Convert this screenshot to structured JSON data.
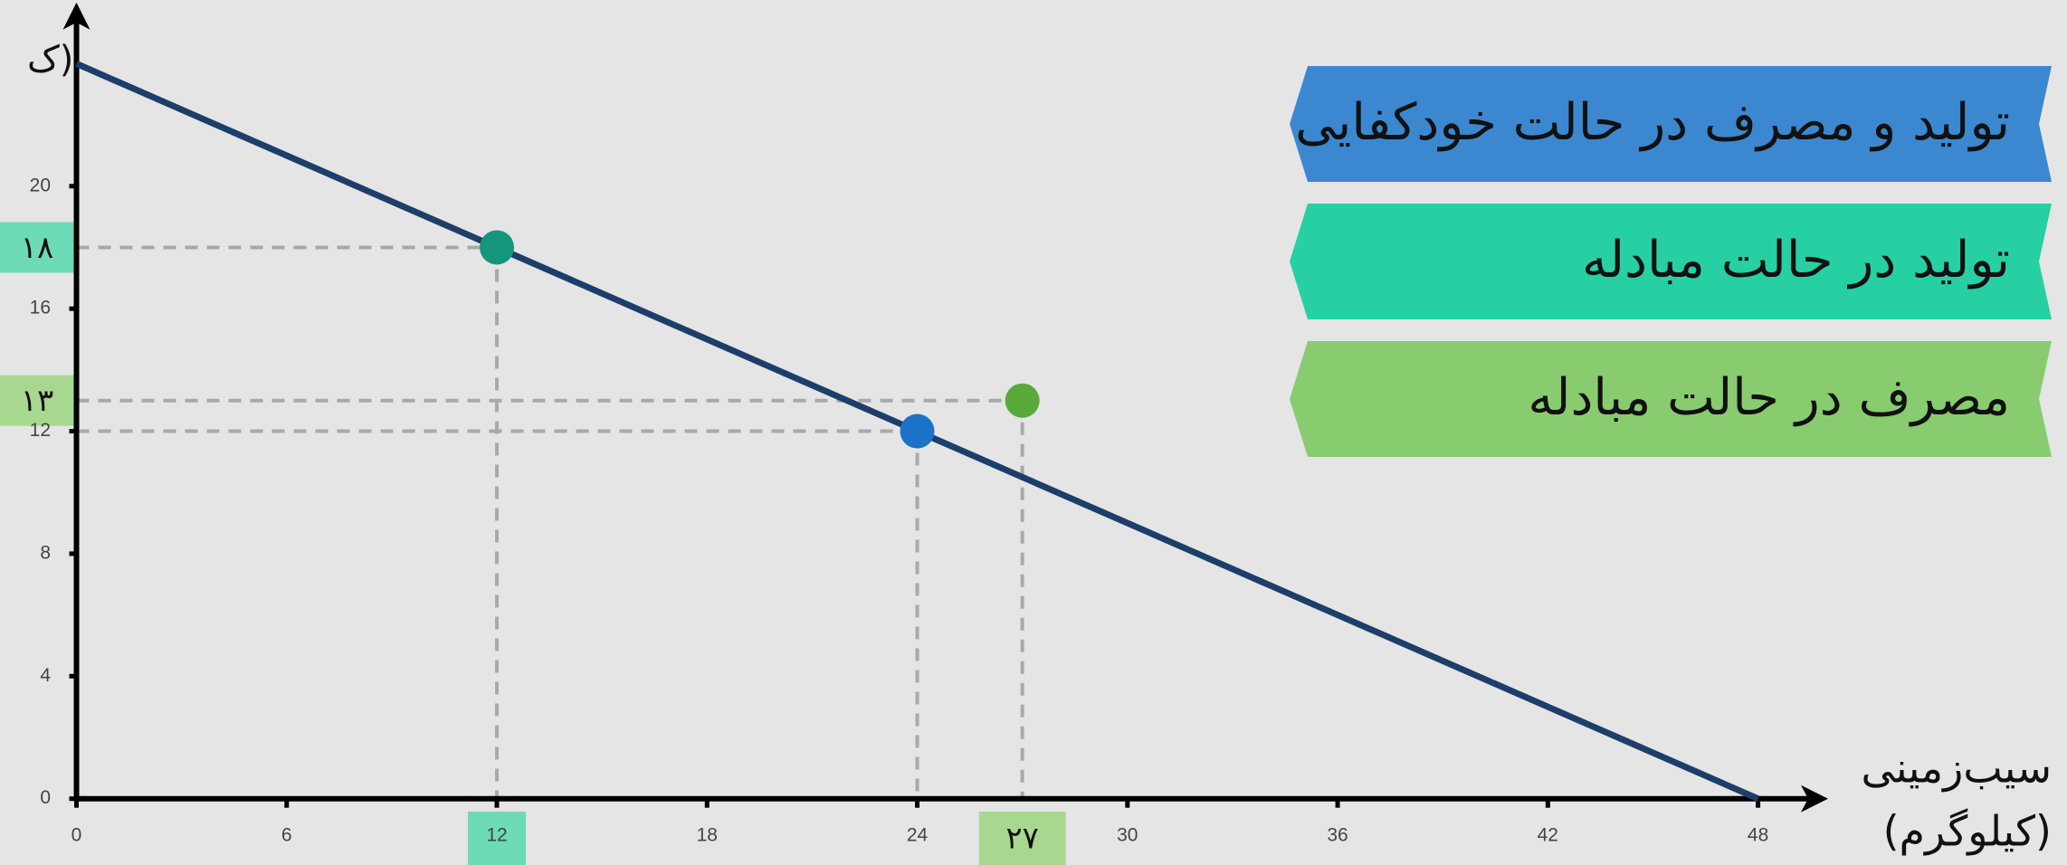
{
  "chart_data": {
    "type": "line",
    "x_label": [
      "سیب‌زمینی",
      "(کیلوگرم)"
    ],
    "y_label": "(ک",
    "xlim": [
      0,
      50
    ],
    "ylim": [
      0,
      26
    ],
    "xticks": [
      0,
      6,
      12,
      18,
      24,
      30,
      36,
      42,
      48
    ],
    "yticks": [
      0,
      4,
      8,
      12,
      16,
      20
    ],
    "series": [
      {
        "x": [
          0,
          48
        ],
        "values": [
          24,
          0
        ],
        "color": "#1d3e6a",
        "style": "line"
      },
      {
        "name": "تولید و مصرف در حالت خودکفایی",
        "x": [
          24
        ],
        "values": [
          12
        ],
        "color": "#1a73c9",
        "legend_color": "#3b88d1",
        "style": "point"
      },
      {
        "name": "تولید در حالت مبادله",
        "x": [
          12
        ],
        "values": [
          18
        ],
        "value_labels": [
          "۱۸"
        ],
        "color": "#14967a",
        "legend_color": "#26d0a3",
        "label_color": "#6ddbb8",
        "style": "point"
      },
      {
        "name": "مصرف در حالت مبادله",
        "x": [
          27
        ],
        "values": [
          13
        ],
        "x_labels": [
          "۲۷"
        ],
        "value_labels": [
          "۱۳"
        ],
        "color": "#5aaa3a",
        "legend_color": "#88cc6f",
        "label_color": "#a8d88f",
        "style": "point"
      }
    ]
  }
}
